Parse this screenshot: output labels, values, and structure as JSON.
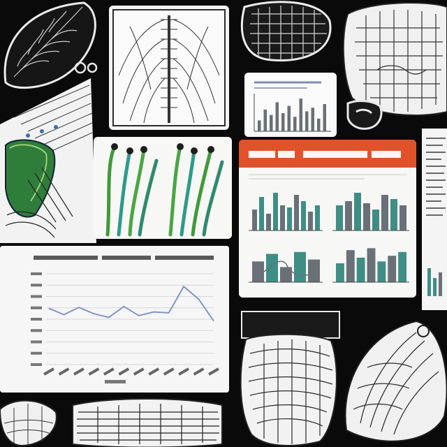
{
  "colors": {
    "background": "#0a0a0a",
    "paper": "#f4f4f2",
    "ink": "#1a1a1a",
    "accent_orange": "#e0532a",
    "plant_green": "#3f9a3a",
    "plant_teal": "#2d9a8a",
    "line_blue": "#7f95c8",
    "bar_gray": "#6a7078",
    "bar_teal": "#3e8e86"
  },
  "panels": {
    "line_chart": {
      "points": [
        0.62,
        0.55,
        0.63,
        0.56,
        0.52,
        0.64,
        0.54,
        0.58,
        0.57,
        0.86,
        0.72,
        0.48
      ]
    },
    "report": {
      "bars": [
        [
          0.5,
          0.8,
          0.4,
          0.9,
          0.6,
          0.55,
          0.85,
          0.7,
          0.45,
          0.6
        ],
        [
          0.6,
          0.7,
          0.9,
          0.65,
          0.5,
          0.85,
          0.75,
          0.6
        ],
        [
          0.55,
          0.75,
          0.4,
          0.8,
          0.6
        ],
        [
          0.5,
          0.85,
          0.65,
          0.9,
          0.55,
          0.7,
          0.8
        ]
      ]
    },
    "small_chart": {
      "bars": [
        0.3,
        0.6,
        0.45,
        0.8,
        0.5,
        0.7,
        0.4,
        0.9,
        0.55,
        0.65,
        0.35,
        0.75
      ]
    }
  }
}
